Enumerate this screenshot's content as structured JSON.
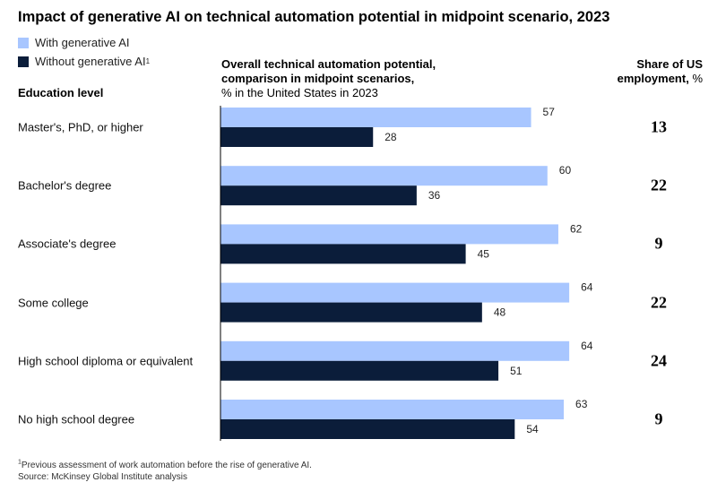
{
  "title": "Impact of generative AI on technical automation potential in midpoint scenario, 2023",
  "legend": {
    "with_label": "With generative AI",
    "without_label": "Without generative AI",
    "without_sup": "1"
  },
  "column_header": {
    "line1": "Overall technical automation potential,",
    "line2": "comparison in midpoint scenarios,",
    "line3": "% in the United States in 2023"
  },
  "education_header": "Education level",
  "share_header": {
    "line1": "Share of US",
    "line2": "employment,",
    "unit": "%"
  },
  "colors": {
    "with_generative_ai": "#a8c6ff",
    "without_generative_ai": "#0b1d3a",
    "axis": "#000000"
  },
  "chart_data": {
    "type": "bar",
    "orientation": "horizontal",
    "categories": [
      "Master's, PhD, or higher",
      "Bachelor's degree",
      "Associate's degree",
      "Some college",
      "High school diploma or equivalent",
      "No high school degree"
    ],
    "series": [
      {
        "name": "With generative AI",
        "values": [
          57,
          60,
          62,
          64,
          64,
          63
        ]
      },
      {
        "name": "Without generative AI",
        "values": [
          28,
          36,
          45,
          48,
          51,
          54
        ]
      }
    ],
    "share_of_us_employment": [
      13,
      22,
      9,
      22,
      24,
      9
    ],
    "xlim": [
      0,
      70
    ],
    "grid": false
  },
  "footnote": {
    "sup": "1",
    "line1": "Previous assessment of work automation before the rise of generative AI.",
    "line2": "Source: McKinsey Global Institute analysis"
  }
}
